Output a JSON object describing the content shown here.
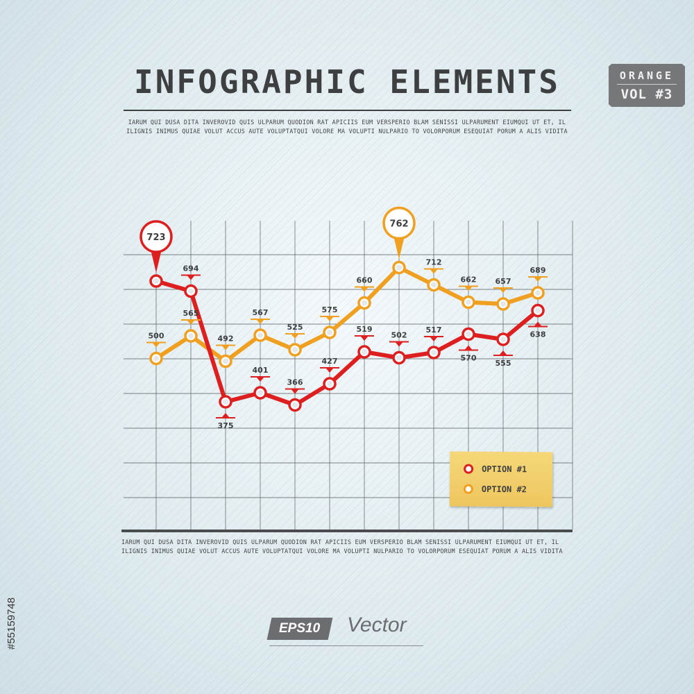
{
  "header": {
    "title": "INFOGRAPHIC ELEMENTS",
    "description": "IARUM QUI DUSA DITA INVEROVID QUIS ULPARUM QUODION RAT APICIIS EUM VERSPERIO BLAM SENISSI ULPARUMENT EIUMQUI UT ET, IL ILIGNIS INIMUS QUIAE VOLUT ACCUS AUTE VOLUPTATQUI VOLORE MA VOLUPTI NULPARIO TO VOLORPORUM ESEQUIAT PORUM A ALIS VIDITA"
  },
  "badge": {
    "line1": "ORANGE",
    "line2": "VOL #3",
    "color": "#757779"
  },
  "footer": {
    "description": "IARUM QUI DUSA DITA INVEROVID QUIS ULPARUM QUODION RAT APICIIS EUM VERSPERIO BLAM SENISSI ULPARUMENT EIUMQUI UT ET, IL ILIGNIS INIMUS QUIAE VOLUT ACCUS AUTE VOLUPTATQUI VOLORE MA VOLUPTI NULPARIO TO VOLORPORUM ESEQUIAT PORUM A ALIS VIDITA",
    "eps_label": "EPS10",
    "vector_label": "Vector",
    "stock_id": "#55159748"
  },
  "chart_data": {
    "type": "line",
    "title": "",
    "xlabel": "",
    "ylabel": "",
    "ylim": [
      0,
      900
    ],
    "grid": true,
    "legend_position": "bottom-right",
    "x": [
      1,
      2,
      3,
      4,
      5,
      6,
      7,
      8,
      9,
      10,
      11,
      12
    ],
    "series": [
      {
        "name": "OPTION #1",
        "color": "#dd1f1f",
        "values": [
          723,
          694,
          375,
          401,
          366,
          427,
          519,
          502,
          517,
          570,
          555,
          638
        ],
        "callout_index": 0,
        "labels_below": [
          2,
          9,
          10,
          11
        ]
      },
      {
        "name": "OPTION #2",
        "color": "#f0a020",
        "values": [
          500,
          565,
          492,
          567,
          525,
          575,
          660,
          762,
          712,
          662,
          657,
          689
        ],
        "callout_index": 7,
        "labels_below": []
      }
    ]
  }
}
